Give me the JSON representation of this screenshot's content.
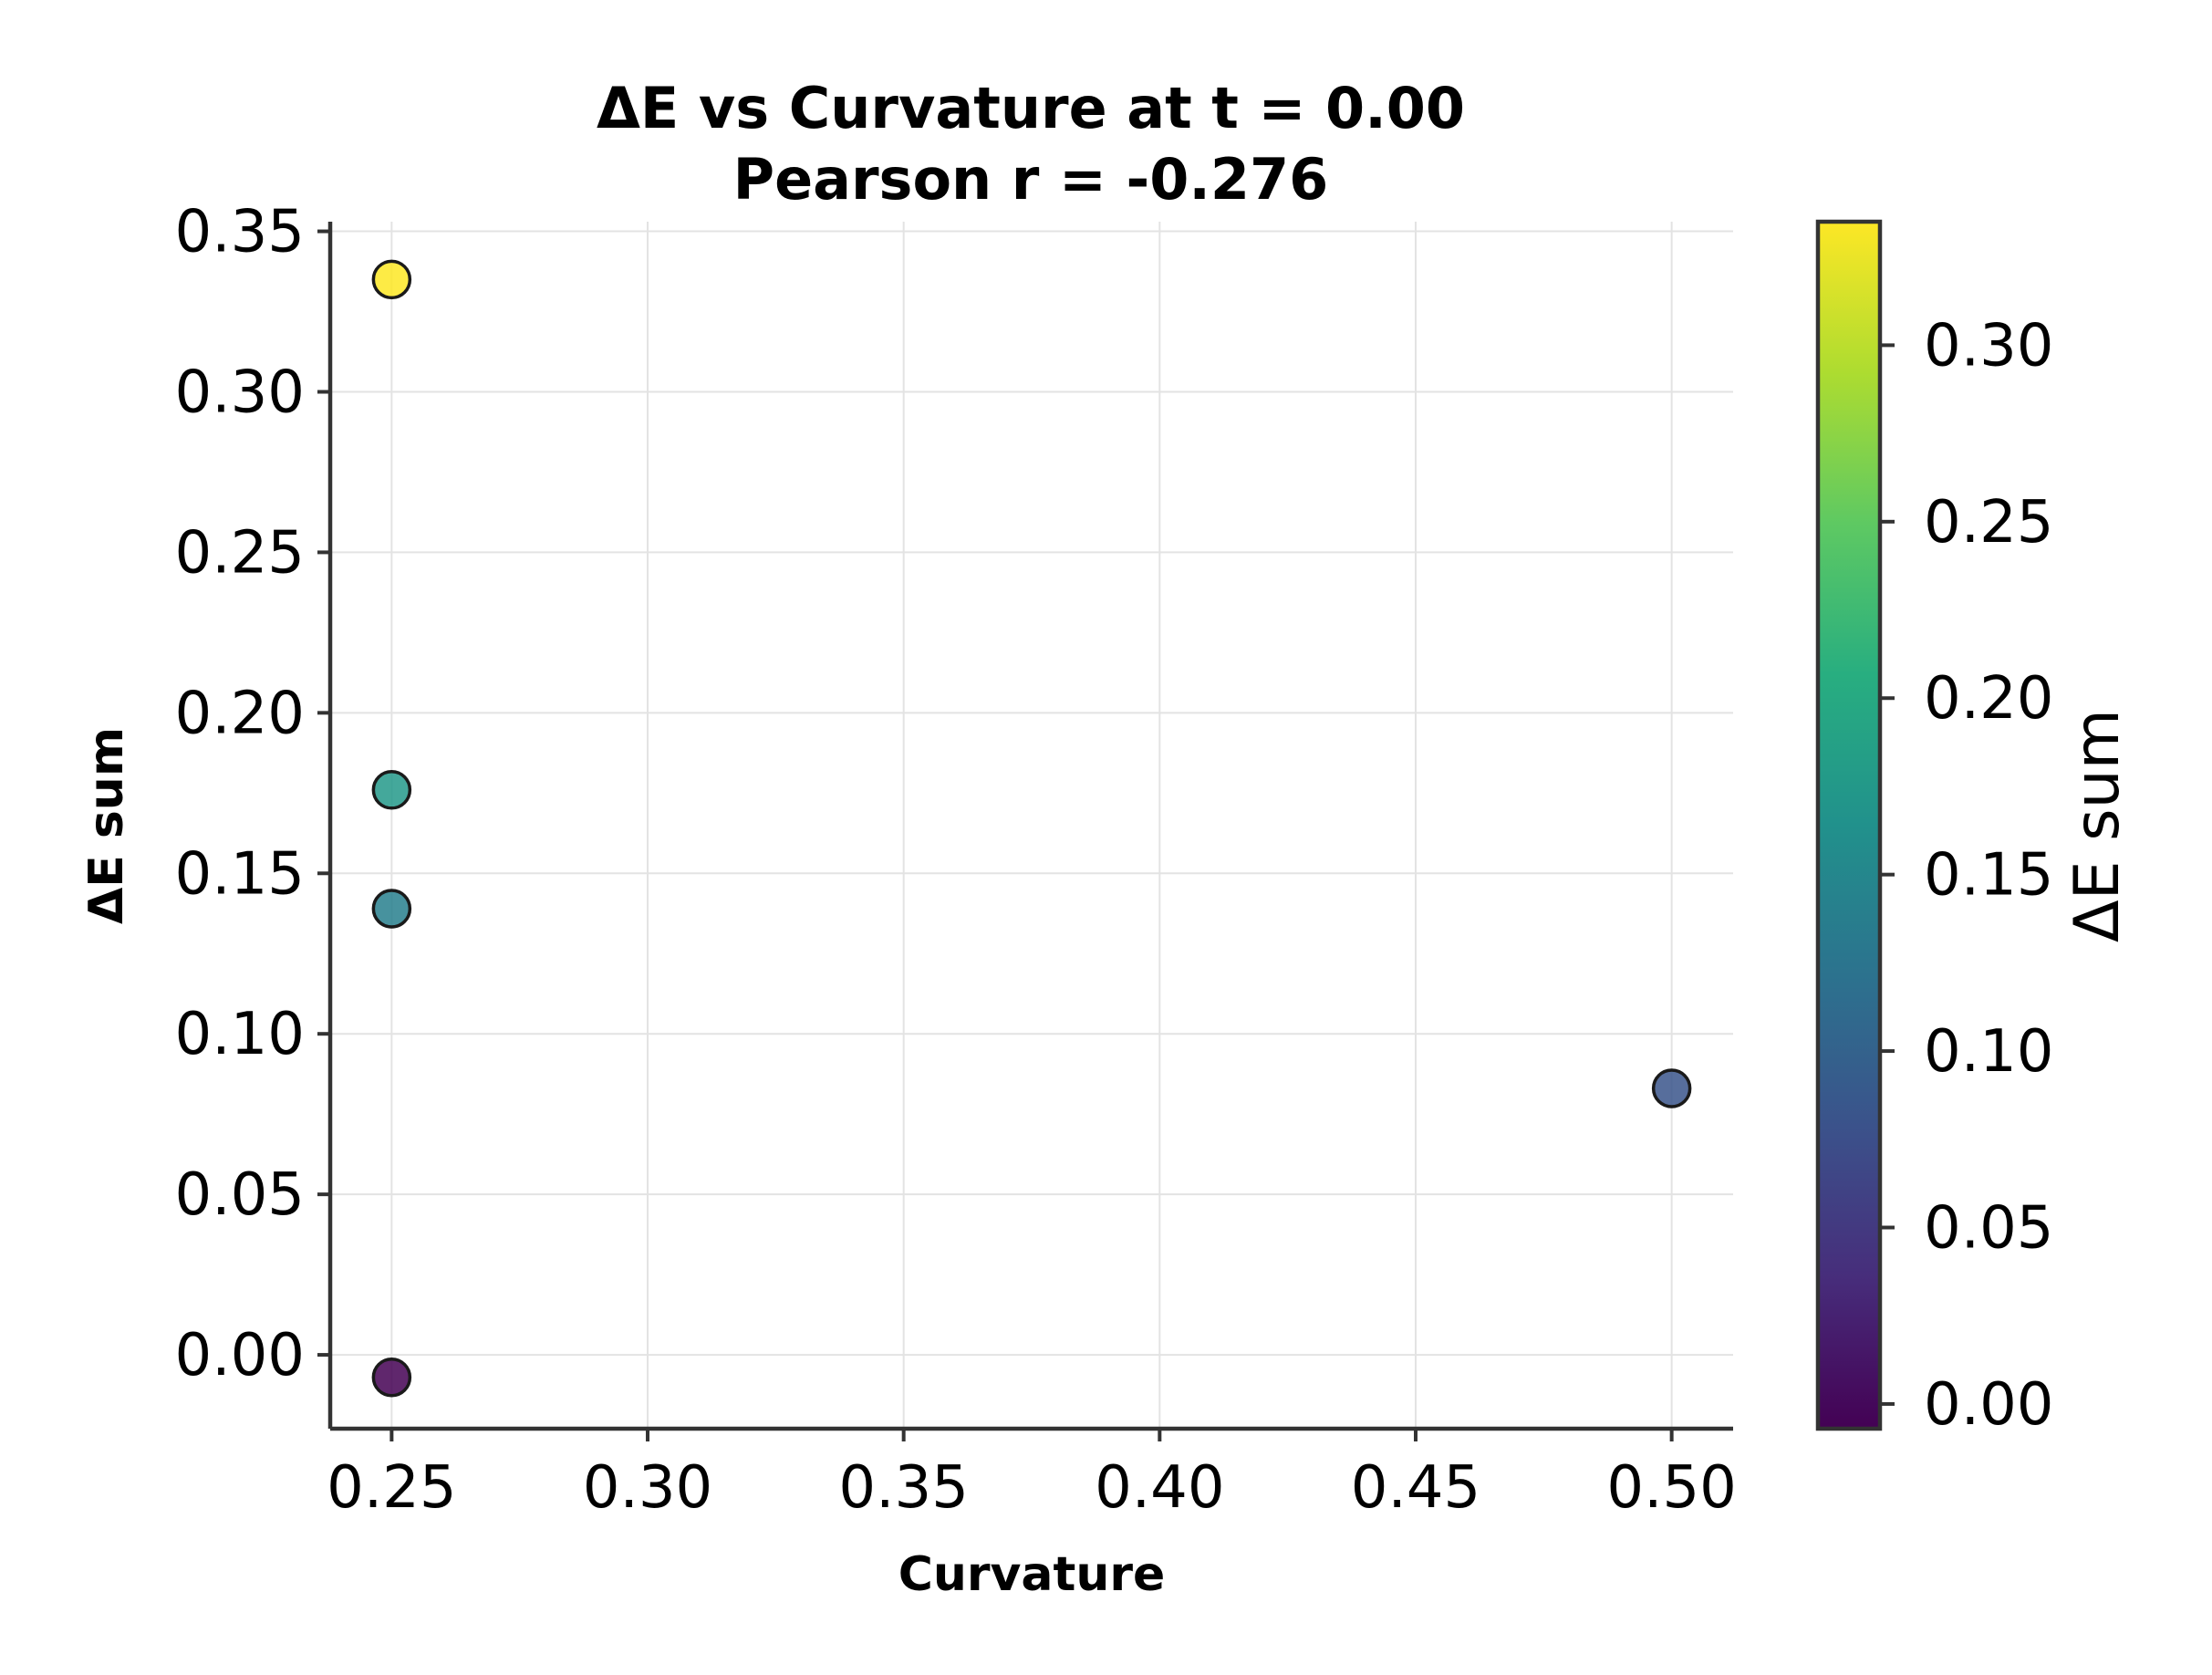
{
  "chart_data": {
    "type": "scatter",
    "title_lines": [
      "ΔE vs Curvature at t = 0.00",
      "Pearson r = -0.276"
    ],
    "xlabel": "Curvature",
    "ylabel": "ΔE sum",
    "xlim": [
      0.238,
      0.512
    ],
    "ylim": [
      -0.023,
      0.353
    ],
    "xticks": [
      0.25,
      0.3,
      0.35,
      0.4,
      0.45,
      0.5
    ],
    "xtick_labels": [
      "0.25",
      "0.30",
      "0.35",
      "0.40",
      "0.45",
      "0.50"
    ],
    "yticks": [
      0.0,
      0.05,
      0.1,
      0.15,
      0.2,
      0.25,
      0.3,
      0.35
    ],
    "ytick_labels": [
      "0.00",
      "0.05",
      "0.10",
      "0.15",
      "0.20",
      "0.25",
      "0.30",
      "0.35"
    ],
    "grid": true,
    "points": [
      {
        "x": 0.25,
        "y": 0.335
      },
      {
        "x": 0.25,
        "y": 0.176
      },
      {
        "x": 0.25,
        "y": 0.139
      },
      {
        "x": 0.25,
        "y": -0.007
      },
      {
        "x": 0.5,
        "y": 0.083
      }
    ],
    "colorbar": {
      "label": "ΔE sum",
      "colormap": "viridis",
      "vmin": -0.007,
      "vmax": 0.335,
      "ticks": [
        0.0,
        0.05,
        0.1,
        0.15,
        0.2,
        0.25,
        0.3
      ],
      "tick_labels": [
        "0.00",
        "0.05",
        "0.10",
        "0.15",
        "0.20",
        "0.25",
        "0.30"
      ]
    }
  }
}
